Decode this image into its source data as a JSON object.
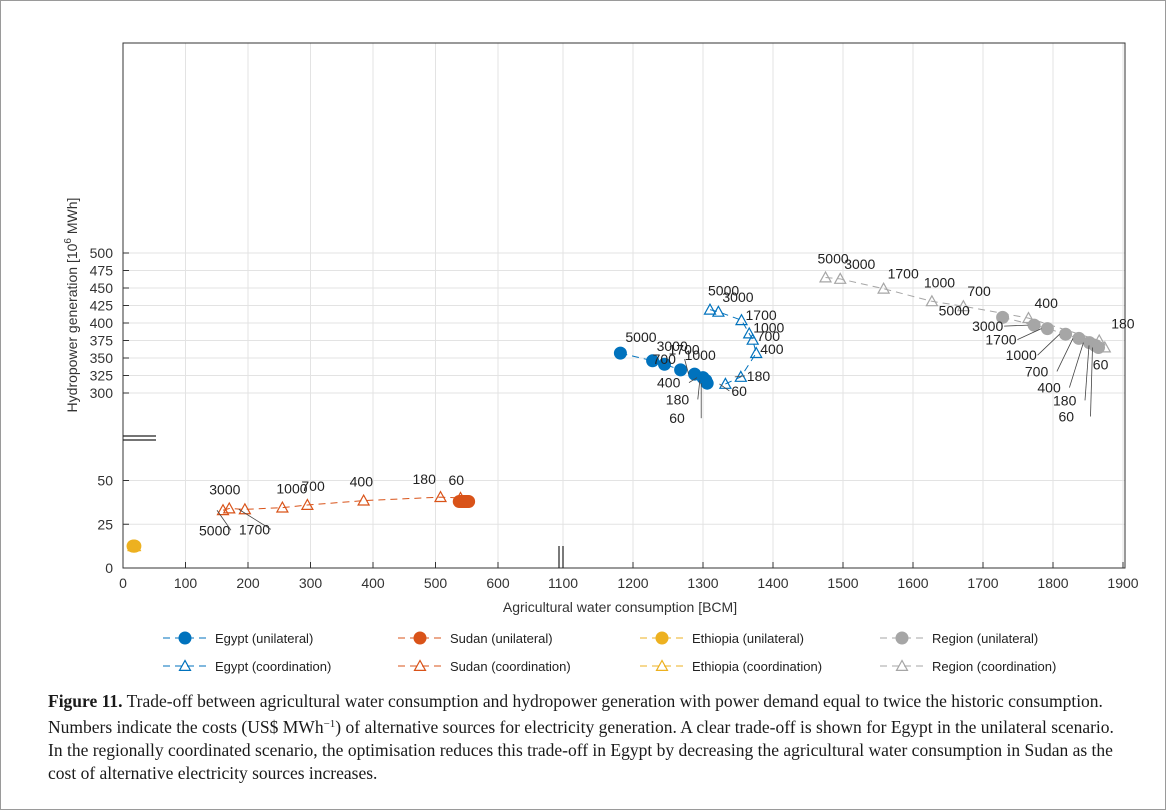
{
  "chart_data": {
    "type": "scatter",
    "xlabel": "Agricultural water consumption [BCM]",
    "ylabel": "Hydropower generation [10",
    "ylabel_sup": "6",
    "ylabel_end": " MWh]",
    "x_ticks": [
      "0",
      "100",
      "200",
      "300",
      "400",
      "500",
      "600",
      "1100",
      "1200",
      "1300",
      "1400",
      "1500",
      "1600",
      "1700",
      "1800",
      "1900"
    ],
    "y_ticks": [
      "0",
      "25",
      "50",
      "300",
      "325",
      "350",
      "375",
      "400",
      "425",
      "450",
      "475",
      "500"
    ],
    "x_axis_break": [
      600,
      1100
    ],
    "y_axis_break": [
      50,
      300
    ],
    "grid": true,
    "series": [
      {
        "name": "Egypt (unilateral)",
        "color": "#0072bd",
        "marker": "filled-circle",
        "x": [
          1182,
          1228,
          1245,
          1268,
          1288,
          1300,
          1304,
          1306
        ],
        "y": [
          357,
          346,
          341,
          333,
          327,
          322,
          318,
          314
        ],
        "labels": [
          "5000",
          "3000",
          "1700",
          "1000",
          "700",
          "400",
          "180",
          "60"
        ]
      },
      {
        "name": "Sudan (unilateral)",
        "color": "#d95319",
        "marker": "filled-circle",
        "x": [
          538,
          541,
          543,
          545,
          547,
          549,
          551,
          553
        ],
        "y": [
          38,
          38,
          38,
          38,
          38,
          38,
          38,
          38
        ],
        "labels": []
      },
      {
        "name": "Ethiopia (unilateral)",
        "color": "#edb120",
        "marker": "filled-circle",
        "x": [
          16,
          17,
          18,
          19
        ],
        "y": [
          12.5,
          12.5,
          12.5,
          12.5
        ],
        "labels": []
      },
      {
        "name": "Region (unilateral)",
        "color": "#a6a6a6",
        "marker": "filled-circle",
        "x": [
          1728,
          1773,
          1792,
          1818,
          1837,
          1852,
          1860,
          1865
        ],
        "y": [
          408,
          397,
          392,
          384,
          378,
          372,
          368,
          365
        ],
        "labels": [
          "5000",
          "3000",
          "1700",
          "1000",
          "700",
          "400",
          "180",
          "60"
        ]
      },
      {
        "name": "Egypt (coordination)",
        "color": "#0072bd",
        "marker": "open-triangle",
        "x": [
          1310,
          1322,
          1355,
          1366,
          1371,
          1376,
          1354,
          1332
        ],
        "y": [
          419,
          416,
          404,
          385,
          376,
          357,
          323,
          313
        ],
        "labels": [
          "5000",
          "3000",
          "1700",
          "1000",
          "700",
          "400",
          "180",
          "60"
        ]
      },
      {
        "name": "Sudan (coordination)",
        "color": "#d95319",
        "marker": "open-triangle",
        "x": [
          160,
          170,
          195,
          255,
          295,
          385,
          508,
          540
        ],
        "y": [
          33,
          34,
          33.5,
          34.5,
          36,
          38.5,
          40.5,
          40
        ],
        "labels": [
          "5000",
          "3000",
          "1700",
          "1000",
          "700",
          "400",
          "180",
          "60"
        ]
      },
      {
        "name": "Ethiopia (coordination)",
        "color": "#edb120",
        "marker": "open-triangle",
        "x": [
          17,
          18,
          19
        ],
        "y": [
          12.5,
          12.5,
          12.5
        ],
        "labels": []
      },
      {
        "name": "Region (coordination)",
        "color": "#a6a6a6",
        "marker": "open-triangle",
        "x": [
          1475,
          1496,
          1558,
          1627,
          1672,
          1765,
          1866,
          1874
        ],
        "y": [
          465,
          463,
          449,
          431,
          424,
          407,
          375,
          365
        ],
        "labels": [
          "5000",
          "3000",
          "1700",
          "1000",
          "700",
          "400",
          "180",
          "60"
        ]
      }
    ]
  },
  "caption": {
    "label": "Figure 11.",
    "text_part1": " Trade-off between agricultural water consumption and hydropower generation with power demand equal to twice the historic consumption. Numbers indicate the costs (US$ MWh",
    "unit_sup": "−1",
    "text_part2": ") of alternative sources for electricity generation. A clear trade-off is shown for Egypt in the unilateral scenario. In the regionally coordinated scenario, the optimisation reduces this trade-off in Egypt by decreasing the agricultural water consumption in Sudan as the cost of alternative electricity sources increases."
  }
}
